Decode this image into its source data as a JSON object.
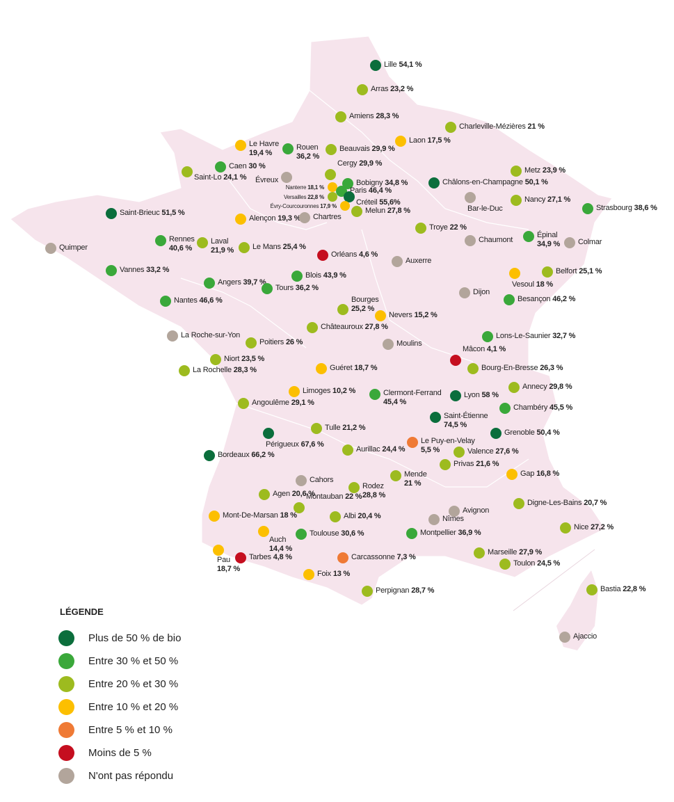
{
  "categories": [
    {
      "id": "gt50",
      "label": "Plus de 50 % de bio",
      "color": "#0b6e3c"
    },
    {
      "id": "30-50",
      "label": "Entre 30 % et 50 %",
      "color": "#3aa83a"
    },
    {
      "id": "20-30",
      "label": "Entre 20 % et 30 %",
      "color": "#9dbb1f"
    },
    {
      "id": "10-20",
      "label": "Entre 10 % et 20 %",
      "color": "#fcbf00"
    },
    {
      "id": "5-10",
      "label": "Entre 5 % et 10 %",
      "color": "#ef7a35"
    },
    {
      "id": "lt5",
      "label": "Moins de 5 %",
      "color": "#c50e1f"
    },
    {
      "id": "na",
      "label": "N'ont pas répondu",
      "color": "#b2a59b"
    }
  ],
  "legend": {
    "title": "LÉGENDE"
  },
  "map_colors": {
    "land": "#f6e4ec",
    "borders": "#ffffff"
  },
  "cities": [
    {
      "name": "Lille",
      "value": "54,1 %",
      "cat": "gt50"
    },
    {
      "name": "Arras",
      "value": "23,2 %",
      "cat": "20-30"
    },
    {
      "name": "Amiens",
      "value": "28,3 %",
      "cat": "20-30"
    },
    {
      "name": "Charleville-Mézières",
      "value": "21 %",
      "cat": "20-30"
    },
    {
      "name": "Laon",
      "value": "17,5 %",
      "cat": "10-20"
    },
    {
      "name": "Le Havre",
      "value": "19,4 %",
      "cat": "10-20"
    },
    {
      "name": "Rouen",
      "value": "36,2 %",
      "cat": "30-50"
    },
    {
      "name": "Beauvais",
      "value": "29,9 %",
      "cat": "20-30"
    },
    {
      "name": "Caen",
      "value": "30 %",
      "cat": "30-50"
    },
    {
      "name": "Saint-Lo",
      "value": "24,1 %",
      "cat": "20-30"
    },
    {
      "name": "Metz",
      "value": "23,9 %",
      "cat": "20-30"
    },
    {
      "name": "Cergy",
      "value": "29,9 %",
      "cat": "20-30"
    },
    {
      "name": "Évreux",
      "value": "",
      "cat": "na"
    },
    {
      "name": "Bobigny",
      "value": "34,8 %",
      "cat": "30-50"
    },
    {
      "name": "Nanterre",
      "value": "18,1 %",
      "cat": "10-20"
    },
    {
      "name": "Paris",
      "value": "46,4 %",
      "cat": "30-50"
    },
    {
      "name": "Versailles",
      "value": "22,8 %",
      "cat": "20-30"
    },
    {
      "name": "Créteil",
      "value": "55,6%",
      "cat": "gt50"
    },
    {
      "name": "Évry-Courcouronnes",
      "value": "17,9 %",
      "cat": "10-20"
    },
    {
      "name": "Melun",
      "value": "27,8 %",
      "cat": "20-30"
    },
    {
      "name": "Châlons-en-Champagne",
      "value": "50,1 %",
      "cat": "gt50"
    },
    {
      "name": "Bar-le-Duc",
      "value": "",
      "cat": "na"
    },
    {
      "name": "Nancy",
      "value": "27,1 %",
      "cat": "20-30"
    },
    {
      "name": "Strasbourg",
      "value": "38,6 %",
      "cat": "30-50"
    },
    {
      "name": "Saint-Brieuc",
      "value": "51,5 %",
      "cat": "gt50"
    },
    {
      "name": "Alençon",
      "value": "19,3 %",
      "cat": "10-20"
    },
    {
      "name": "Chartres",
      "value": "",
      "cat": "na"
    },
    {
      "name": "Troye",
      "value": "22 %",
      "cat": "20-30"
    },
    {
      "name": "Chaumont",
      "value": "",
      "cat": "na"
    },
    {
      "name": "Épinal",
      "value": "34,9 %",
      "cat": "30-50"
    },
    {
      "name": "Colmar",
      "value": "",
      "cat": "na"
    },
    {
      "name": "Quimper",
      "value": "",
      "cat": "na"
    },
    {
      "name": "Rennes",
      "value": "40,6 %",
      "cat": "30-50"
    },
    {
      "name": "Laval",
      "value": "21,9 %",
      "cat": "20-30"
    },
    {
      "name": "Le Mans",
      "value": "25,4 %",
      "cat": "20-30"
    },
    {
      "name": "Orléans",
      "value": "4,6 %",
      "cat": "lt5"
    },
    {
      "name": "Auxerre",
      "value": "",
      "cat": "na"
    },
    {
      "name": "Vannes",
      "value": "33,2 %",
      "cat": "30-50"
    },
    {
      "name": "Blois",
      "value": "43,9 %",
      "cat": "30-50"
    },
    {
      "name": "Vesoul",
      "value": "18 %",
      "cat": "10-20"
    },
    {
      "name": "Belfort",
      "value": "25,1 %",
      "cat": "20-30"
    },
    {
      "name": "Angers",
      "value": "39,7 %",
      "cat": "30-50"
    },
    {
      "name": "Tours",
      "value": "36,2 %",
      "cat": "30-50"
    },
    {
      "name": "Dijon",
      "value": "",
      "cat": "na"
    },
    {
      "name": "Nantes",
      "value": "46,6 %",
      "cat": "30-50"
    },
    {
      "name": "Besançon",
      "value": "46,2 %",
      "cat": "30-50"
    },
    {
      "name": "Bourges",
      "value": "25,2 %",
      "cat": "20-30"
    },
    {
      "name": "Nevers",
      "value": "15,2 %",
      "cat": "10-20"
    },
    {
      "name": "Châteauroux",
      "value": "27,8 %",
      "cat": "20-30"
    },
    {
      "name": "La Roche-sur-Yon",
      "value": "",
      "cat": "na"
    },
    {
      "name": "Lons-Le-Saunier",
      "value": "32,7 %",
      "cat": "30-50"
    },
    {
      "name": "Poitiers",
      "value": "26 %",
      "cat": "20-30"
    },
    {
      "name": "Moulins",
      "value": "",
      "cat": "na"
    },
    {
      "name": "Niort",
      "value": "23,5 %",
      "cat": "20-30"
    },
    {
      "name": "Mâcon",
      "value": "4,1 %",
      "cat": "lt5"
    },
    {
      "name": "Bourg-En-Bresse",
      "value": "26,3 %",
      "cat": "20-30"
    },
    {
      "name": "La Rochelle",
      "value": "28,3 %",
      "cat": "20-30"
    },
    {
      "name": "Guéret",
      "value": "18,7 %",
      "cat": "10-20"
    },
    {
      "name": "Limoges",
      "value": "10,2 %",
      "cat": "10-20"
    },
    {
      "name": "Annecy",
      "value": "29,8 %",
      "cat": "20-30"
    },
    {
      "name": "Clermont-Ferrand",
      "value": "45,4 %",
      "cat": "30-50"
    },
    {
      "name": "Lyon",
      "value": "58 %",
      "cat": "gt50"
    },
    {
      "name": "Angoulême",
      "value": "29,1 %",
      "cat": "20-30"
    },
    {
      "name": "Chambéry",
      "value": "45,5 %",
      "cat": "30-50"
    },
    {
      "name": "Saint-Étienne",
      "value": "74,5 %",
      "cat": "gt50"
    },
    {
      "name": "Tulle",
      "value": "21,2 %",
      "cat": "20-30"
    },
    {
      "name": "Périgueux",
      "value": "67,6 %",
      "cat": "gt50"
    },
    {
      "name": "Grenoble",
      "value": "50,4 %",
      "cat": "gt50"
    },
    {
      "name": "Le Puy-en-Velay",
      "value": "5,5 %",
      "cat": "5-10"
    },
    {
      "name": "Aurillac",
      "value": "24,4 %",
      "cat": "20-30"
    },
    {
      "name": "Valence",
      "value": "27,6 %",
      "cat": "20-30"
    },
    {
      "name": "Bordeaux",
      "value": "66,2 %",
      "cat": "gt50"
    },
    {
      "name": "Privas",
      "value": "21,6 %",
      "cat": "20-30"
    },
    {
      "name": "Mende",
      "value": "21 %",
      "cat": "20-30"
    },
    {
      "name": "Gap",
      "value": "16,8 %",
      "cat": "10-20"
    },
    {
      "name": "Cahors",
      "value": "",
      "cat": "na"
    },
    {
      "name": "Rodez",
      "value": "28,8 %",
      "cat": "20-30"
    },
    {
      "name": "Agen",
      "value": "20,6 %",
      "cat": "20-30"
    },
    {
      "name": "Digne-Les-Bains",
      "value": "20,7 %",
      "cat": "20-30"
    },
    {
      "name": "Montauban",
      "value": "22 %",
      "cat": "20-30"
    },
    {
      "name": "Avignon",
      "value": "",
      "cat": "na"
    },
    {
      "name": "Mont-De-Marsan",
      "value": "18 %",
      "cat": "10-20"
    },
    {
      "name": "Albi",
      "value": "20,4 %",
      "cat": "20-30"
    },
    {
      "name": "Nîmes",
      "value": "",
      "cat": "na"
    },
    {
      "name": "Nice",
      "value": "27,2 %",
      "cat": "20-30"
    },
    {
      "name": "Auch",
      "value": "14,4 %",
      "cat": "10-20"
    },
    {
      "name": "Toulouse",
      "value": "30,6 %",
      "cat": "30-50"
    },
    {
      "name": "Montpellier",
      "value": "36,9 %",
      "cat": "30-50"
    },
    {
      "name": "Pau",
      "value": "18,7 %",
      "cat": "10-20"
    },
    {
      "name": "Marseille",
      "value": "27,9 %",
      "cat": "20-30"
    },
    {
      "name": "Tarbes",
      "value": "4,8 %",
      "cat": "lt5"
    },
    {
      "name": "Carcassonne",
      "value": "7,3 %",
      "cat": "5-10"
    },
    {
      "name": "Toulon",
      "value": "24,5 %",
      "cat": "20-30"
    },
    {
      "name": "Foix",
      "value": "13 %",
      "cat": "10-20"
    },
    {
      "name": "Perpignan",
      "value": "28,7 %",
      "cat": "20-30"
    },
    {
      "name": "Bastia",
      "value": "22,8 %",
      "cat": "20-30"
    },
    {
      "name": "Ajaccio",
      "value": "",
      "cat": "na"
    }
  ]
}
